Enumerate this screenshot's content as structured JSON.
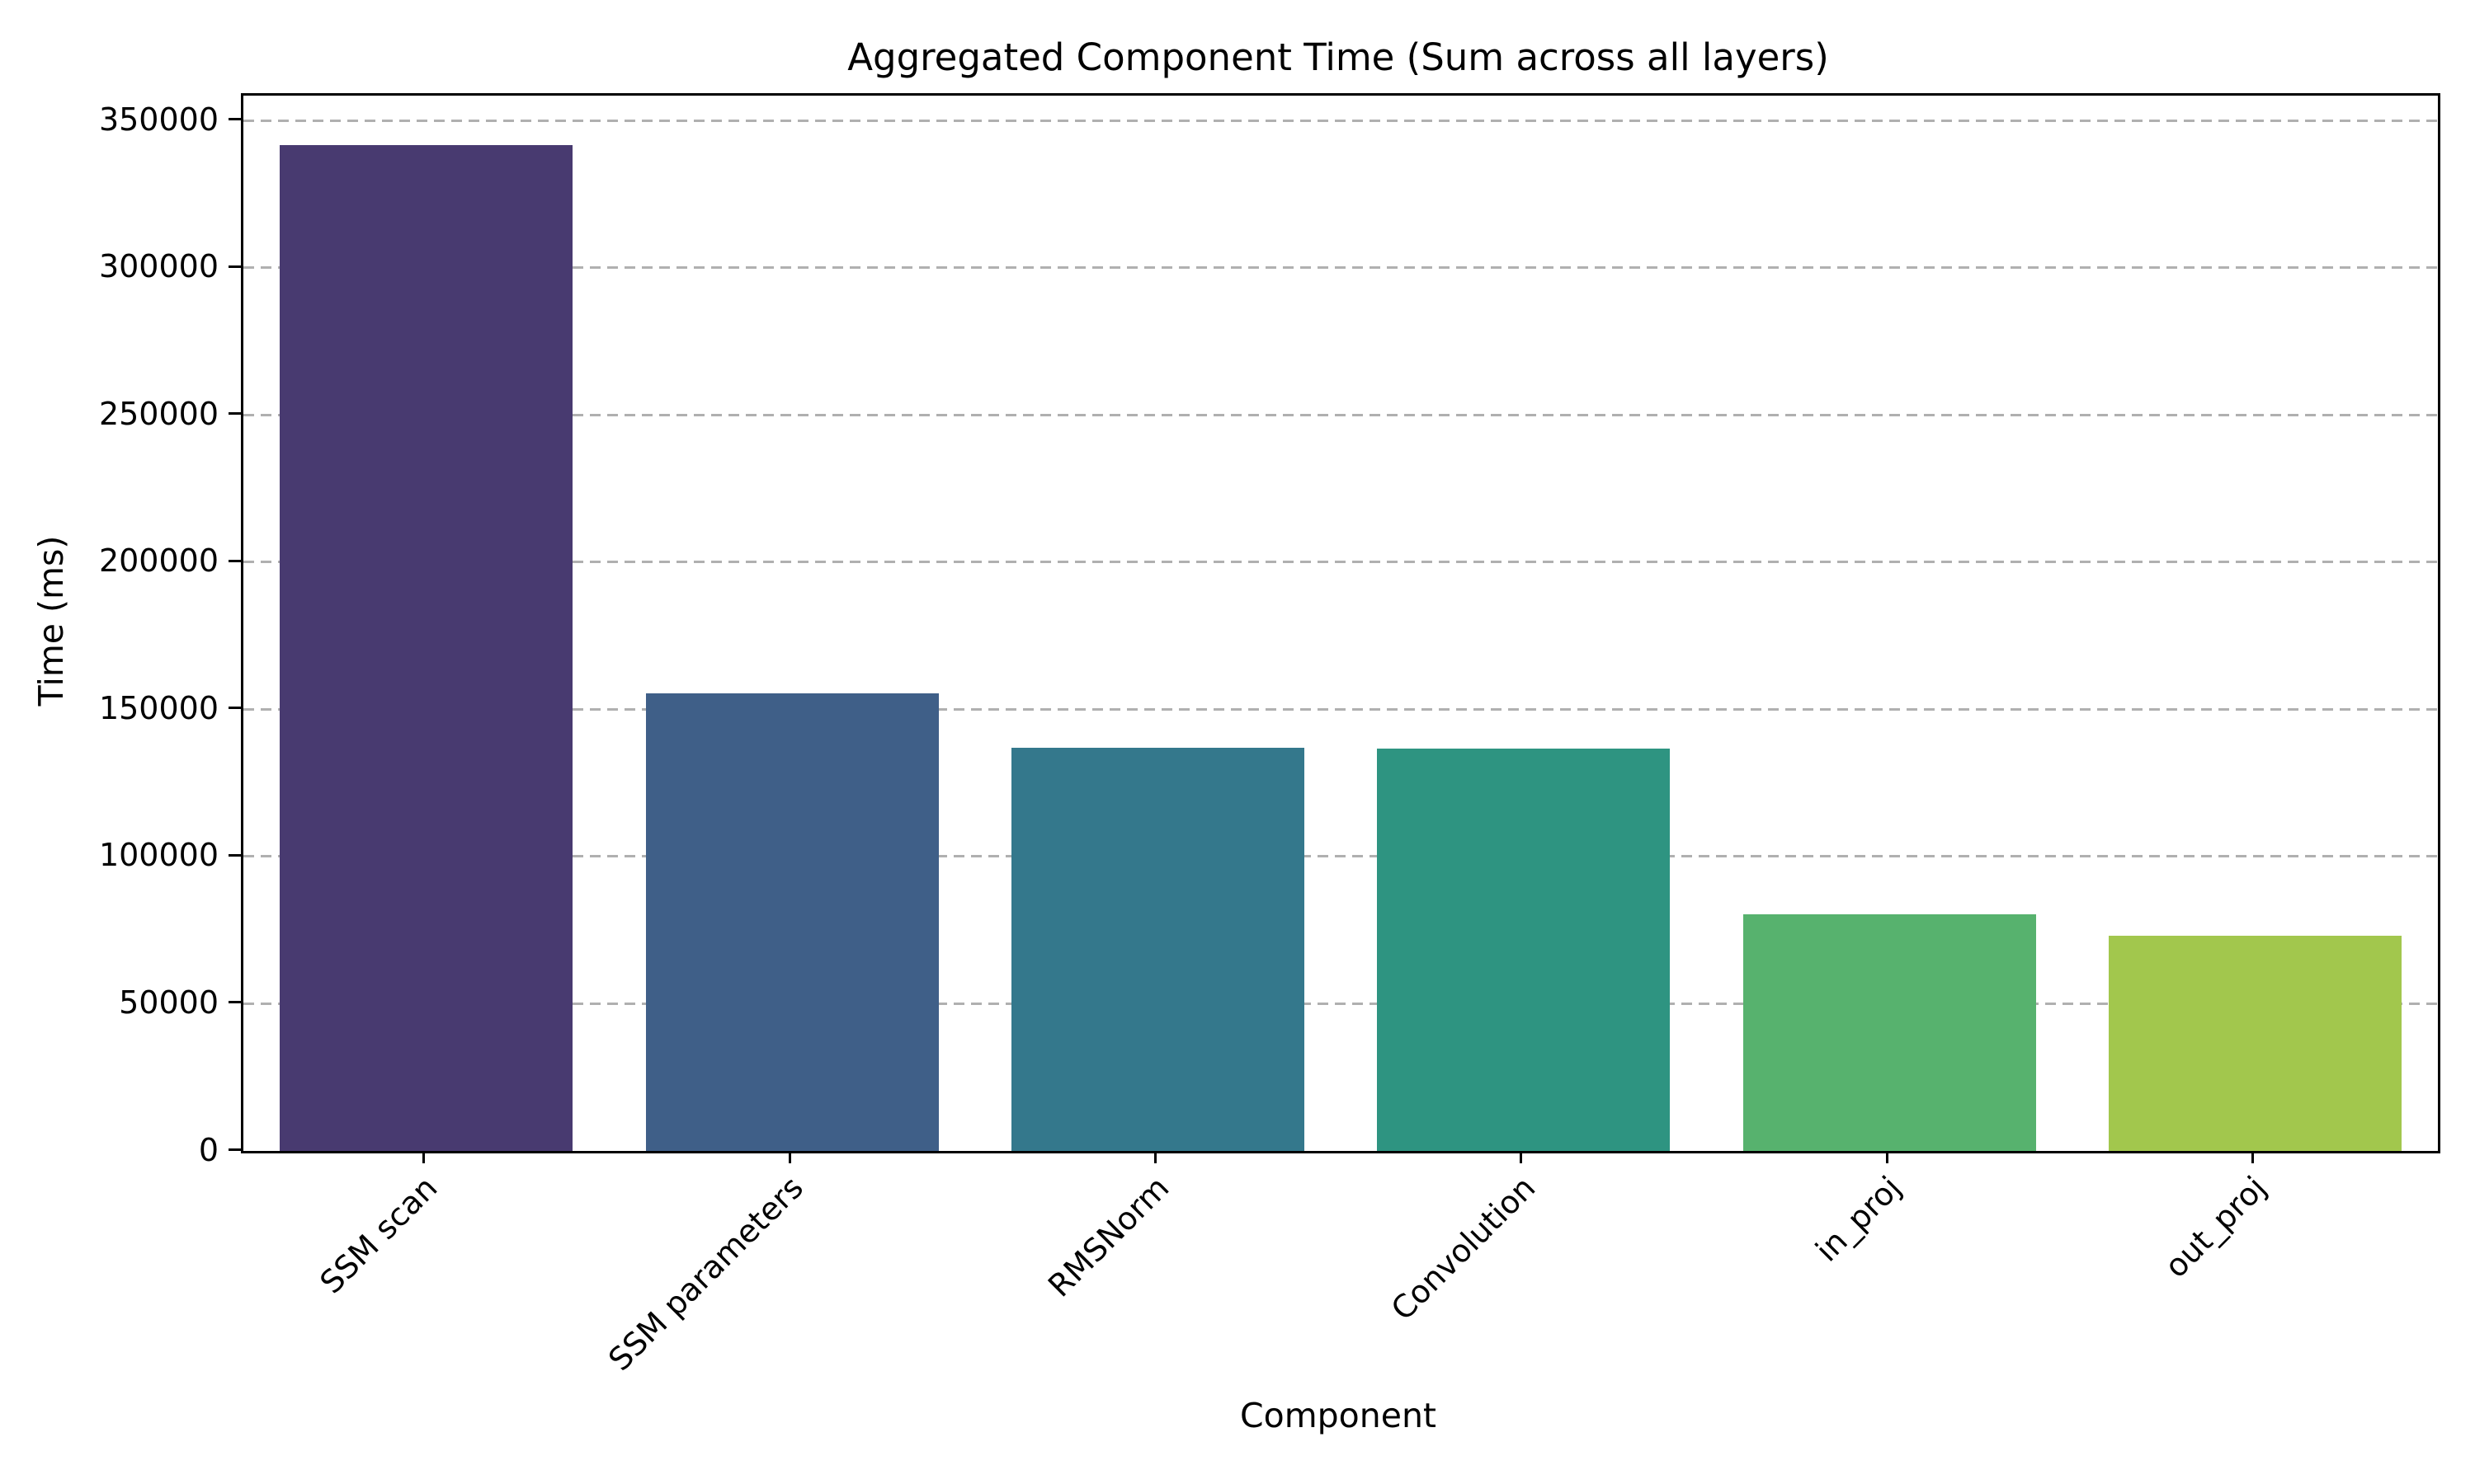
{
  "chart_data": {
    "type": "bar",
    "title": "Aggregated Component Time (Sum across all layers)",
    "xlabel": "Component",
    "ylabel": "Time (ms)",
    "categories": [
      "SSM scan",
      "SSM parameters",
      "RMSNorm",
      "Convolution",
      "in_proj",
      "out_proj"
    ],
    "values": [
      341600,
      155500,
      137000,
      136700,
      80400,
      73100
    ],
    "bar_colors": [
      "#483a70",
      "#3f5f88",
      "#34788c",
      "#2e9481",
      "#57b26e",
      "#a2c74d"
    ],
    "yticks": [
      0,
      50000,
      100000,
      150000,
      200000,
      250000,
      300000,
      350000
    ],
    "ytick_labels": [
      "0",
      "50000",
      "100000",
      "150000",
      "200000",
      "250000",
      "300000",
      "350000"
    ],
    "ylim": [
      0,
      358400
    ],
    "grid": {
      "axis": "y",
      "style": "dashed",
      "color": "#b0b0b0"
    },
    "legend": "none",
    "background_color": "#ffffff",
    "spine_color": "#000000"
  }
}
